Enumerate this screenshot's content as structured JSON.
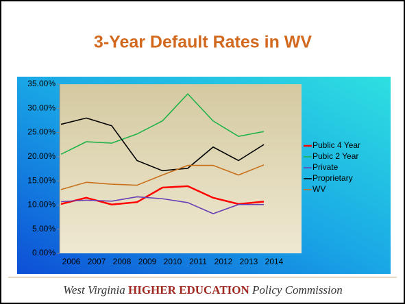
{
  "chart_data": {
    "type": "line",
    "title": "3-Year Default Rates in WV",
    "categories": [
      "2006",
      "2007",
      "2008",
      "2009",
      "2010",
      "2011",
      "2012",
      "2013",
      "2014"
    ],
    "series": [
      {
        "name": "Public 4 Year",
        "color": "#ff0000",
        "values": [
          10.2,
          11.5,
          10.1,
          10.6,
          13.6,
          13.9,
          11.5,
          10.2,
          10.7
        ]
      },
      {
        "name": "Pubic 2 Year",
        "color": "#1fb34a",
        "values": [
          20.5,
          23.1,
          22.8,
          24.7,
          27.4,
          33.0,
          27.4,
          24.2,
          25.2
        ]
      },
      {
        "name": "Private",
        "color": "#6a3fb5",
        "values": [
          10.7,
          11.0,
          10.8,
          11.7,
          11.3,
          10.5,
          8.2,
          10.1,
          10.1
        ]
      },
      {
        "name": "Proprietary",
        "color": "#000000",
        "values": [
          26.7,
          28.0,
          26.4,
          19.2,
          17.1,
          17.6,
          22.0,
          19.2,
          22.5
        ]
      },
      {
        "name": "WV",
        "color": "#c8701a",
        "values": [
          13.2,
          14.7,
          14.3,
          14.1,
          16.2,
          18.2,
          18.2,
          16.2,
          18.3
        ]
      }
    ],
    "ylim": [
      0,
      35
    ],
    "yticks": [
      {
        "value": 0,
        "label": "0.00%"
      },
      {
        "value": 5,
        "label": "5.00%"
      },
      {
        "value": 10,
        "label": "10.00%"
      },
      {
        "value": 15,
        "label": "15.00%"
      },
      {
        "value": 20,
        "label": "20.00%"
      },
      {
        "value": 25,
        "label": "25.00%"
      },
      {
        "value": 30,
        "label": "30.00%"
      },
      {
        "value": 35,
        "label": "35.00%"
      }
    ],
    "legend": "right"
  },
  "footer": {
    "state": "West Virginia",
    "org": "HIGHER EDUCATION",
    "rest": "Policy Commission"
  }
}
